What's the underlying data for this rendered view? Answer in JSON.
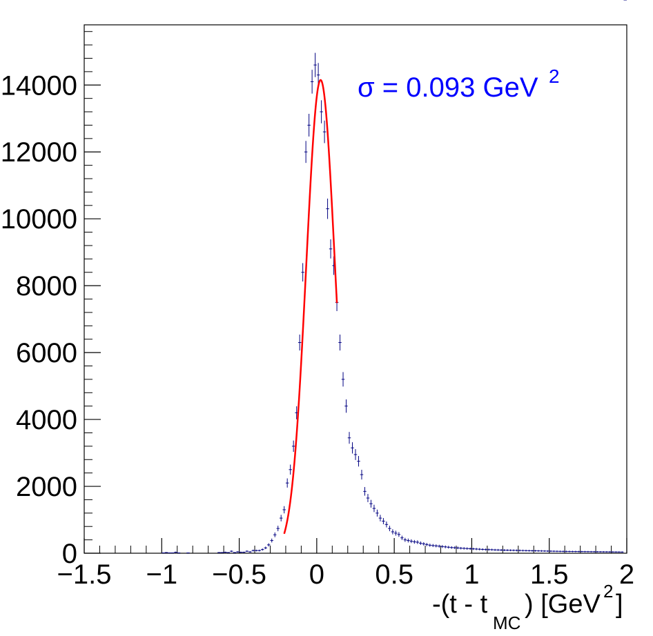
{
  "chart_data": {
    "type": "scatter",
    "xlabel": {
      "pre": "-(t - t",
      "sub": "MC",
      "post": ") [GeV",
      "sup": "2",
      "end": "]"
    },
    "ylabel": "",
    "xlim": [
      -1.5,
      2.0
    ],
    "ylim": [
      0,
      15800
    ],
    "x_ticks": [
      -1.5,
      -1,
      -0.5,
      0,
      0.5,
      1,
      1.5,
      2
    ],
    "x_tick_labels": [
      "−1.5",
      "−1",
      "−0.5",
      "0",
      "0.5",
      "1",
      "1.5",
      "2"
    ],
    "y_ticks": [
      0,
      2000,
      4000,
      6000,
      8000,
      10000,
      12000,
      14000
    ],
    "y_tick_labels": [
      "0",
      "2000",
      "4000",
      "6000",
      "8000",
      "10000",
      "12000",
      "14000"
    ],
    "annotation": {
      "text": "σ = 0.093 GeV",
      "sup": "2",
      "color": "#0000ff"
    },
    "colors": {
      "points": "#000080",
      "fit": "#ff0000",
      "axes": "#000000"
    },
    "grid": false,
    "bin_width": 0.02,
    "series": [
      {
        "type": "histogram-errorbars",
        "x": [
          -1.5,
          -1.48,
          -1.46,
          -1.44,
          -1.42,
          -1.4,
          -1.38,
          -1.36,
          -1.34,
          -1.32,
          -1.3,
          -1.28,
          -1.26,
          -1.24,
          -1.22,
          -1.2,
          -1.18,
          -1.16,
          -1.14,
          -1.12,
          -1.1,
          -1.08,
          -1.06,
          -1.04,
          -1.02,
          -1.0,
          -0.98,
          -0.96,
          -0.94,
          -0.92,
          -0.9,
          -0.88,
          -0.86,
          -0.84,
          -0.82,
          -0.8,
          -0.78,
          -0.76,
          -0.74,
          -0.72,
          -0.7,
          -0.68,
          -0.66,
          -0.64,
          -0.62,
          -0.6,
          -0.58,
          -0.56,
          -0.54,
          -0.52,
          -0.5,
          -0.48,
          -0.46,
          -0.44,
          -0.42,
          -0.4,
          -0.38,
          -0.36,
          -0.34,
          -0.32,
          -0.3,
          -0.28,
          -0.26,
          -0.24,
          -0.22,
          -0.2,
          -0.18,
          -0.16,
          -0.14,
          -0.12,
          -0.1,
          -0.08,
          -0.06,
          -0.04,
          -0.02,
          0.0,
          0.02,
          0.04,
          0.06,
          0.08,
          0.1,
          0.12,
          0.14,
          0.16,
          0.18,
          0.2,
          0.22,
          0.24,
          0.26,
          0.28,
          0.3,
          0.32,
          0.34,
          0.36,
          0.38,
          0.4,
          0.42,
          0.44,
          0.46,
          0.48,
          0.5,
          0.52,
          0.54,
          0.56,
          0.58,
          0.6,
          0.62,
          0.64,
          0.66,
          0.68,
          0.7,
          0.72,
          0.74,
          0.76,
          0.78,
          0.8,
          0.82,
          0.84,
          0.86,
          0.88,
          0.9,
          0.92,
          0.94,
          0.96,
          0.98,
          1.0,
          1.02,
          1.04,
          1.06,
          1.08,
          1.1,
          1.12,
          1.14,
          1.16,
          1.18,
          1.2,
          1.22,
          1.24,
          1.26,
          1.28,
          1.3,
          1.32,
          1.34,
          1.36,
          1.38,
          1.4,
          1.42,
          1.44,
          1.46,
          1.48,
          1.5,
          1.52,
          1.54,
          1.56,
          1.58,
          1.6,
          1.62,
          1.64,
          1.66,
          1.68,
          1.7,
          1.72,
          1.74,
          1.76,
          1.78,
          1.8,
          1.82,
          1.84,
          1.86,
          1.88,
          1.9,
          1.92,
          1.94,
          1.96,
          1.98
        ],
        "y": [
          0,
          0,
          0,
          0,
          0,
          0,
          0,
          0,
          0,
          0,
          0,
          0,
          0,
          0,
          0,
          0,
          0,
          0,
          0,
          0,
          0,
          0,
          0,
          0,
          0,
          10,
          20,
          10,
          10,
          30,
          10,
          0,
          0,
          10,
          0,
          0,
          0,
          0,
          0,
          0,
          0,
          0,
          0,
          20,
          20,
          30,
          20,
          60,
          20,
          40,
          30,
          30,
          60,
          40,
          80,
          80,
          80,
          110,
          160,
          250,
          380,
          550,
          740,
          1050,
          1300,
          2100,
          2500,
          3200,
          4200,
          6300,
          8400,
          12000,
          12800,
          14100,
          14600,
          14300,
          13200,
          12600,
          10300,
          9100,
          8600,
          7500,
          6300,
          5200,
          4400,
          3450,
          3150,
          2950,
          2750,
          2350,
          1850,
          1650,
          1480,
          1340,
          1200,
          1050,
          960,
          860,
          740,
          640,
          600,
          560,
          460,
          400,
          380,
          360,
          340,
          330,
          300,
          280,
          260,
          240,
          230,
          220,
          210,
          200,
          190,
          180,
          170,
          165,
          160,
          150,
          145,
          140,
          135,
          130,
          125,
          120,
          115,
          110,
          108,
          105,
          100,
          98,
          95,
          92,
          90,
          88,
          86,
          84,
          82,
          80,
          78,
          76,
          74,
          72,
          70,
          68,
          66,
          64,
          62,
          60,
          58,
          56,
          55,
          54,
          53,
          52,
          51,
          50,
          49,
          48,
          47,
          46,
          45,
          44,
          43,
          42,
          41,
          40,
          39,
          38,
          37,
          36
        ]
      },
      {
        "type": "gaussian-fit",
        "name": "",
        "x_range": [
          -0.21,
          0.13
        ],
        "mean": 0.025,
        "sigma": 0.093,
        "amplitude": 14150
      }
    ]
  }
}
